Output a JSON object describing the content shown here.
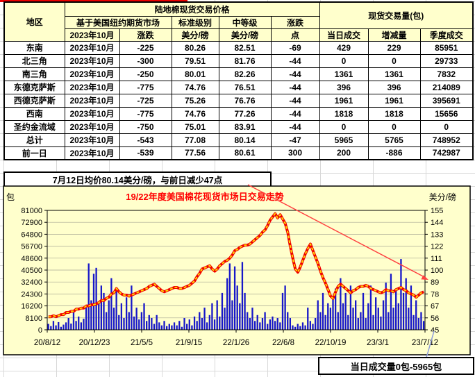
{
  "colors": {
    "header_bg": "#FFFFCC",
    "chart_bg": "#FFFFCC",
    "negative_blue": "#1A6FCC",
    "positive_red": "#E80000",
    "title_red": "#FF0000",
    "bar_blue": "#1717C9",
    "line_red": "#F00000",
    "line_yellow": "#FFD700",
    "trend_arrow": "#FF4040",
    "leader_line": "#8F9EDC",
    "grid_line": "#A8A894"
  },
  "table": {
    "header": {
      "region": "地区",
      "price_title": "陆地棉现货交易价格",
      "volume_title": "现货交易量(包)"
    },
    "row2": [
      "基于美国纽约期货市场",
      "标准级别",
      "中等级",
      "涨跌"
    ],
    "sub": [
      "2023年10月",
      "涨跌",
      "美分/磅",
      "美分/磅",
      "点",
      "当日成交",
      "增减量",
      "季度成交"
    ],
    "rows": [
      {
        "region": "东南",
        "month": "2023年10月",
        "change": "-225",
        "std": "80.26",
        "mid": "82.51",
        "points": "-69",
        "points_color": "blue",
        "day": "429",
        "delta": "229",
        "delta_color": "red",
        "season": "85951"
      },
      {
        "region": "北三角",
        "month": "2023年10月",
        "change": "-300",
        "std": "79.51",
        "mid": "81.76",
        "points": "-44",
        "points_color": "blue",
        "day": "0",
        "delta": "0",
        "delta_color": "red",
        "season": "29733"
      },
      {
        "region": "南三角",
        "month": "2023年10月",
        "change": "-250",
        "std": "80.01",
        "mid": "82.26",
        "points": "-44",
        "points_color": "blue",
        "day": "1361",
        "delta": "1361",
        "delta_color": "red",
        "season": "7832"
      },
      {
        "region": "东德克萨斯",
        "month": "2023年10月",
        "change": "-775",
        "std": "74.76",
        "mid": "76.51",
        "points": "-44",
        "points_color": "blue",
        "day": "396",
        "delta": "396",
        "delta_color": "red",
        "season": "214089"
      },
      {
        "region": "西德克萨斯",
        "month": "2023年10月",
        "change": "-725",
        "std": "75.26",
        "mid": "76.76",
        "points": "-44",
        "points_color": "blue",
        "day": "1961",
        "delta": "1961",
        "delta_color": "red",
        "season": "395691"
      },
      {
        "region": "西南",
        "month": "2023年10月",
        "change": "-775",
        "std": "74.76",
        "mid": "77.26",
        "points": "-44",
        "points_color": "blue",
        "day": "1818",
        "delta": "1818",
        "delta_color": "red",
        "season": "15656"
      },
      {
        "region": "圣约金流域",
        "month": "2023年10月",
        "change": "-750",
        "std": "75.01",
        "mid": "83.91",
        "points": "-44",
        "points_color": "blue",
        "day": "0",
        "delta": "0",
        "delta_color": "red",
        "season": "0"
      },
      {
        "region": "总计",
        "month": "2023年10月",
        "change": "-543",
        "std": "77.08",
        "mid": "80.14",
        "points": "-47",
        "points_color": "blue",
        "day": "5965",
        "delta": "5765",
        "delta_color": "red",
        "season": "748952"
      },
      {
        "region": "前一日",
        "month": "2023年10月",
        "change": "-539",
        "std": "77.56",
        "mid": "80.61",
        "points": "300",
        "points_color": "red",
        "day": "200",
        "delta": "-886",
        "delta_color": "blue",
        "season": "742987"
      }
    ]
  },
  "banner": {
    "text": "7月12日均价80.14美分/磅，与前日减少47点"
  },
  "footer_box": {
    "text": "当日成交量0包-5965包"
  },
  "chart_data": {
    "type": "combo",
    "title": "19/22年度美国棉花现货市场日交易走势",
    "left_axis_label": "包",
    "right_axis_label": "美分/磅",
    "ylim_left": [
      0,
      81000
    ],
    "ylim_right": [
      45,
      155
    ],
    "left_ticks": [
      81000,
      72900,
      64800,
      56700,
      48600,
      40500,
      32400,
      24300,
      16200,
      8100,
      0
    ],
    "right_ticks": [
      155,
      144,
      133,
      122,
      111,
      100,
      89,
      78,
      67,
      56,
      45
    ],
    "x_labels": [
      "20/8/12",
      "20/12/23",
      "21/5/5",
      "21/9/15",
      "22/1/26",
      "22/6/8",
      "22/10/19",
      "23/3/1",
      "23/7/12"
    ],
    "grid": true,
    "series": [
      {
        "key": "daily_volume_bales",
        "type": "bar",
        "axis": "left",
        "values": [
          4000,
          2500,
          6000,
          3000,
          5200,
          2000,
          3500,
          5000,
          8000,
          4200,
          12000,
          6000,
          9000,
          5000,
          7500,
          15000,
          45000,
          20000,
          38000,
          42000,
          18000,
          30000,
          25000,
          12000,
          20000,
          35000,
          15000,
          28000,
          10000,
          18000,
          8000,
          22000,
          12000,
          30000,
          9000,
          15000,
          7000,
          12000,
          18000,
          6000,
          10000,
          8000,
          4000,
          10000,
          5000,
          3000,
          6000,
          2500,
          4000,
          3000,
          5000,
          3000,
          6000,
          2000,
          8000,
          4000,
          7000,
          3000,
          9000,
          6000,
          12000,
          8000,
          15000,
          5000,
          10000,
          18000,
          7000,
          20000,
          9000,
          25000,
          15000,
          35000,
          45000,
          20000,
          43000,
          30000,
          18000,
          46000,
          25000,
          12000,
          8000,
          15000,
          6000,
          10000,
          5000,
          8000,
          12000,
          4000,
          7000,
          9000,
          6000,
          8000,
          5000,
          25000,
          30000,
          12000,
          8000,
          3000,
          2000,
          4000,
          2500,
          5000,
          3000,
          15000,
          6000,
          4000,
          8000,
          20000,
          12000,
          25000,
          10000,
          18000,
          15000,
          22000,
          28000,
          12000,
          35000,
          18000,
          25000,
          10000,
          30000,
          15000,
          20000,
          8000,
          12000,
          25000,
          8000,
          18000,
          30000,
          10000,
          22000,
          15000,
          9000,
          20000,
          32000,
          12000,
          38000,
          15000,
          28000,
          18000,
          48000,
          25000,
          35000,
          15000,
          30000,
          10000,
          20000,
          8000,
          12000,
          5965
        ]
      },
      {
        "key": "spot_price_cents_per_lb",
        "type": "line",
        "axis": "right",
        "values": [
          57,
          57,
          58,
          57,
          58,
          59,
          59,
          61,
          61,
          62,
          62,
          64,
          64,
          65,
          65,
          67,
          67,
          68,
          68,
          69,
          70,
          72,
          72,
          74,
          75,
          78,
          79,
          83,
          80,
          78,
          77,
          77,
          76,
          77,
          78,
          79,
          80,
          81,
          82,
          83,
          85,
          86,
          87,
          85,
          83,
          81,
          80,
          81,
          82,
          83,
          84,
          84,
          83,
          83,
          84,
          85,
          86,
          88,
          90,
          94,
          97,
          101,
          102,
          103,
          104,
          101,
          99,
          101,
          104,
          106,
          108,
          109,
          111,
          114,
          118,
          119,
          121,
          122,
          123,
          123,
          124,
          126,
          128,
          130,
          132,
          135,
          137,
          141,
          146,
          149,
          152,
          148,
          151,
          147,
          143,
          135,
          122,
          111,
          101,
          98,
          103,
          109,
          115,
          120,
          124,
          118,
          112,
          106,
          99,
          93,
          88,
          82,
          76,
          74,
          80,
          85,
          87,
          85,
          83,
          81,
          79,
          81,
          82,
          84,
          85,
          85,
          86,
          85,
          83,
          82,
          81,
          80,
          79,
          80,
          82,
          81,
          81,
          80,
          82,
          83,
          84,
          82,
          81,
          79,
          78,
          77,
          75,
          77,
          79,
          80
        ]
      }
    ]
  }
}
